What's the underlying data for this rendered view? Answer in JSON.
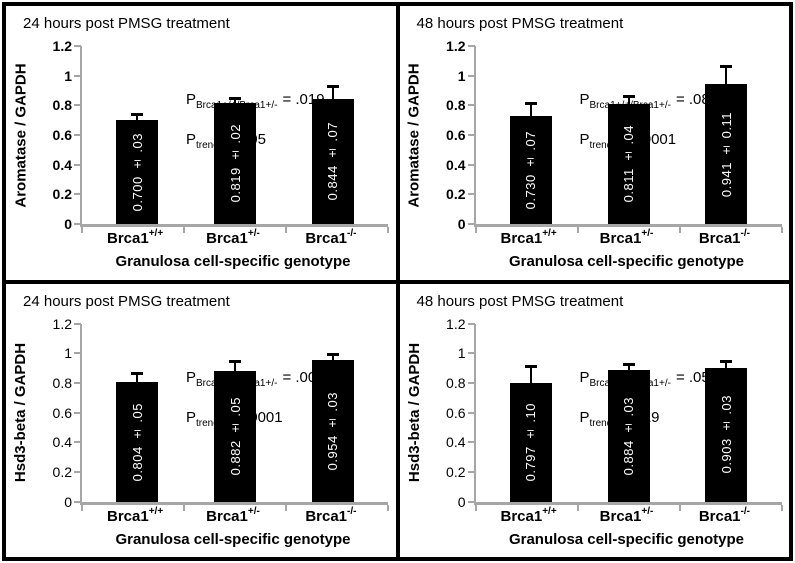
{
  "colors": {
    "bar_fill": "#000000",
    "axis_line": "#a6a6a6",
    "bar_label_text": "#ffffff",
    "frame_border": "#000000"
  },
  "yticks": [
    {
      "label": "1.2",
      "value": 1.2
    },
    {
      "label": "1",
      "value": 1.0
    },
    {
      "label": "0.8",
      "value": 0.8
    },
    {
      "label": "0.6",
      "value": 0.6
    },
    {
      "label": "0.4",
      "value": 0.4
    },
    {
      "label": "0.2",
      "value": 0.2
    },
    {
      "label": "0",
      "value": 0.0
    }
  ],
  "genotype_format": [
    {
      "base": "Brca1",
      "sup": "+/+"
    },
    {
      "base": "Brca1",
      "sup": "+/-"
    },
    {
      "base": "Brca1",
      "sup": "-/-"
    }
  ],
  "chart_data": [
    {
      "type": "bar",
      "title": "24 hours post PMSG treatment",
      "ylabel": "Aromatase / GAPDH",
      "xlabel": "Granulosa cell-specific genotype",
      "categories": [
        "Brca1+/+",
        "Brca1+/-",
        "Brca1-/-"
      ],
      "values": [
        0.7,
        0.819,
        0.844
      ],
      "errors": [
        0.03,
        0.02,
        0.07
      ],
      "bar_labels": [
        "0.700 ± .03",
        "0.819 ± .02",
        "0.844 ± .07"
      ],
      "ylim": [
        0,
        1.2
      ],
      "annotations": [
        {
          "prefix": "P",
          "sub": "Brca1+/+/Brca1+/-",
          "rest": "= .019"
        },
        {
          "prefix": "P",
          "sub": "trend",
          "rest": "< .005"
        }
      ]
    },
    {
      "type": "bar",
      "title": "48 hours post PMSG treatment",
      "ylabel": "Aromatase / GAPDH",
      "xlabel": "Granulosa cell-specific genotype",
      "categories": [
        "Brca1+/+",
        "Brca1+/-",
        "Brca1-/-"
      ],
      "values": [
        0.73,
        0.811,
        0.941
      ],
      "errors": [
        0.07,
        0.04,
        0.11
      ],
      "bar_labels": [
        "0.730 ± .07",
        "0.811 ± .04",
        "0.941 ± 0.11"
      ],
      "ylim": [
        0,
        1.2
      ],
      "annotations": [
        {
          "prefix": "P",
          "sub": "Brca1+/+/Brca1+/-",
          "rest": "= .089"
        },
        {
          "prefix": "P",
          "sub": "trend",
          "rest": "< .00001"
        }
      ]
    },
    {
      "type": "bar",
      "title": "24 hours post PMSG treatment",
      "ylabel": "Hsd3-beta / GAPDH",
      "xlabel": "Granulosa cell-specific genotype",
      "categories": [
        "Brca1+/+",
        "Brca1+/-",
        "Brca1-/-"
      ],
      "values": [
        0.804,
        0.882,
        0.954
      ],
      "errors": [
        0.05,
        0.05,
        0.03
      ],
      "bar_labels": [
        "0.804 ± .05",
        "0.882 ± .05",
        "0.954 ± .03"
      ],
      "ylim": [
        0,
        1.2
      ],
      "annotations": [
        {
          "prefix": "P",
          "sub": "Brca1+/+/Brca1+/-",
          "rest": "= .006"
        },
        {
          "prefix": "P",
          "sub": "trend",
          "rest": "< .00001"
        }
      ]
    },
    {
      "type": "bar",
      "title": "48 hours post PMSG treatment",
      "ylabel": "Hsd3-beta / GAPDH",
      "xlabel": "Granulosa cell-specific genotype",
      "categories": [
        "Brca1+/+",
        "Brca1+/-",
        "Brca1-/-"
      ],
      "values": [
        0.797,
        0.884,
        0.903
      ],
      "errors": [
        0.1,
        0.03,
        0.03
      ],
      "bar_labels": [
        "0.797 ± .10",
        "0.884 ± .03",
        "0.903 ± .03"
      ],
      "ylim": [
        0,
        1.2
      ],
      "annotations": [
        {
          "prefix": "P",
          "sub": "Brca1+/+/Brca1+/-",
          "rest": "= .054"
        },
        {
          "prefix": "P",
          "sub": "trend",
          "rest": "= .019"
        }
      ]
    }
  ]
}
